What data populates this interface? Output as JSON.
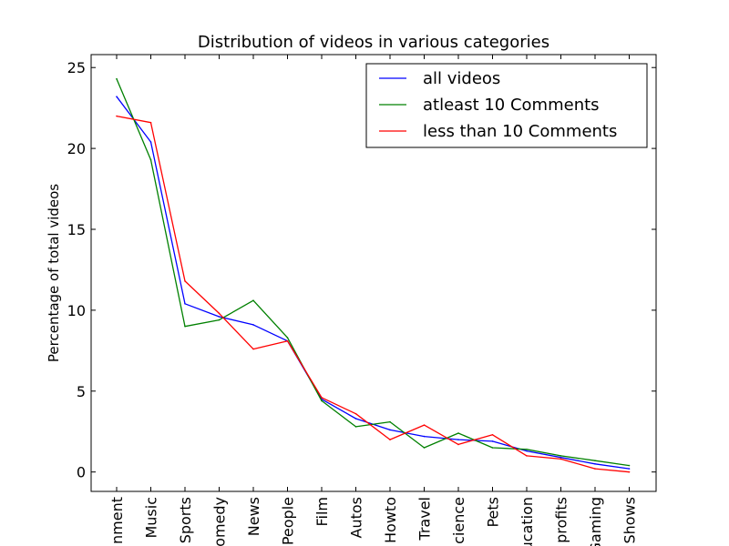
{
  "chart_data": {
    "type": "line",
    "title": "Distribution of videos in various categories",
    "xlabel": "",
    "ylabel": "Percentage of total videos",
    "categories": [
      "nment",
      "Music",
      "Sports",
      "omedy",
      "News",
      "People",
      "Film",
      "Autos",
      "Howto",
      "Travel",
      "cience",
      "Pets",
      "ucation",
      "profits",
      "Gaming",
      "Shows"
    ],
    "ylim": [
      -1.2,
      25.8
    ],
    "yticks": [
      0,
      5,
      10,
      15,
      20,
      25
    ],
    "grid": false,
    "legend_position": "top-right",
    "series": [
      {
        "name": "all videos",
        "color": "#0000ff",
        "values": [
          23.2,
          20.4,
          10.4,
          9.6,
          9.1,
          8.1,
          4.5,
          3.3,
          2.6,
          2.2,
          2.0,
          1.9,
          1.3,
          0.9,
          0.5,
          0.2
        ]
      },
      {
        "name": "atleast 10 Comments",
        "color": "#008000",
        "values": [
          24.3,
          19.3,
          9.0,
          9.4,
          10.6,
          8.3,
          4.4,
          2.8,
          3.1,
          1.5,
          2.4,
          1.5,
          1.4,
          1.0,
          0.7,
          0.4
        ]
      },
      {
        "name": "less than 10 Comments",
        "color": "#ff0000",
        "values": [
          22.0,
          21.6,
          11.8,
          9.8,
          7.6,
          8.1,
          4.6,
          3.6,
          2.0,
          2.9,
          1.7,
          2.3,
          1.0,
          0.8,
          0.2,
          0.0
        ]
      }
    ]
  }
}
